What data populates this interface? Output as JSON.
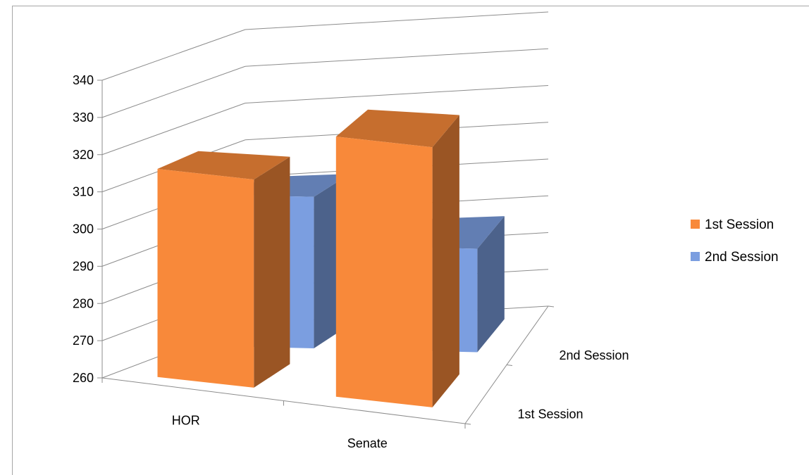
{
  "chart_data": {
    "type": "bar",
    "subtype": "3d-column",
    "categories": [
      "HOR",
      "Senate"
    ],
    "depth_categories": [
      "1st Session",
      "2nd Session"
    ],
    "series": [
      {
        "name": "1st Session",
        "values": [
          316,
          330
        ],
        "color": "#f8893a"
      },
      {
        "name": "2nd Session",
        "values": [
          301,
          288
        ],
        "color": "#7b9ee0"
      }
    ],
    "yticks": [
      "260",
      "270",
      "280",
      "290",
      "300",
      "310",
      "320",
      "330",
      "340"
    ],
    "ylim": [
      260,
      340
    ],
    "grid": true,
    "legend": "right"
  }
}
